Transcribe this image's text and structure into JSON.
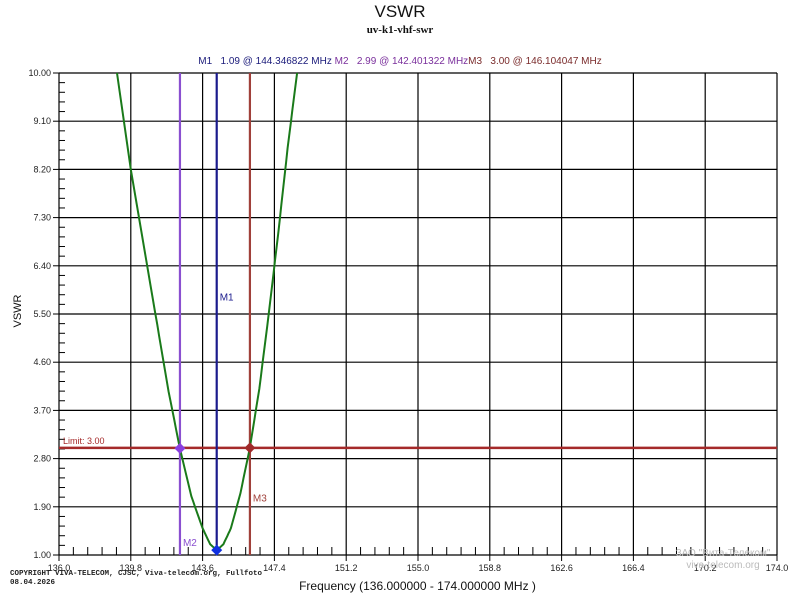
{
  "header": {
    "title": "VSWR",
    "subtitle": "uv-k1-vhf-swr"
  },
  "markers_readout": [
    {
      "label": "M1",
      "text": "M1   1.09 @ 144.346822 MHz ",
      "color": "#1a1a7a"
    },
    {
      "label": "M2",
      "text": "M2   2.99 @ 142.401322 MHz",
      "color": "#7a2f9c"
    },
    {
      "label": "M3",
      "text": "M3   3.00 @ 146.104047 MHz",
      "color": "#7a2b2b"
    }
  ],
  "axes": {
    "ylabel": "VSWR",
    "xlabel": "Frequency (136.000000 - 174.000000 MHz )"
  },
  "footer": {
    "copyright_line1": "COPYRIGHT VIVA-TELECOM, CJSC, Viva-telecom.org, Fullfoto",
    "copyright_line2": "08.04.2026",
    "watermark_line1": "ЗАО \"Вита-Телеком\"",
    "watermark_line2": "viva-telecom.org"
  },
  "limit": {
    "label": "Limit: 3.00",
    "value": 3.0,
    "color": "#a52a2a"
  },
  "colors": {
    "curve": "#1a7a1a",
    "m1": "#1a1a8c",
    "m1_diamond": "#1030e0",
    "m2": "#8a4fd0",
    "m2_diamond": "#8a3fe0",
    "m3": "#a0403a",
    "m3_diamond": "#a02a2a",
    "grid": "#000000"
  },
  "chart_data": {
    "type": "line",
    "title": "VSWR",
    "subtitle": "uv-k1-vhf-swr",
    "xlabel": "Frequency (136.000000 - 174.000000 MHz )",
    "ylabel": "VSWR",
    "xlim": [
      136.0,
      174.0
    ],
    "ylim": [
      1.0,
      10.0
    ],
    "x_ticks": [
      "136.0",
      "139.8",
      "143.6",
      "147.4",
      "151.2",
      "155.0",
      "158.8",
      "162.6",
      "166.4",
      "170.2",
      "174.0"
    ],
    "y_ticks": [
      "1.00",
      "1.90",
      "2.80",
      "3.70",
      "4.60",
      "5.50",
      "6.40",
      "7.30",
      "8.20",
      "9.10",
      "10.00"
    ],
    "grid": true,
    "series": [
      {
        "name": "VSWR",
        "x": [
          139.07,
          139.8,
          140.5,
          141.2,
          141.8,
          142.4,
          143.0,
          143.6,
          144.0,
          144.35,
          144.7,
          145.1,
          145.6,
          146.1,
          146.6,
          147.1,
          147.6,
          148.1,
          148.6
        ],
        "y": [
          10.0,
          8.2,
          6.75,
          5.3,
          4.05,
          2.99,
          2.1,
          1.5,
          1.2,
          1.09,
          1.2,
          1.5,
          2.15,
          3.0,
          4.1,
          5.5,
          7.0,
          8.6,
          10.0
        ]
      }
    ],
    "markers": [
      {
        "name": "M1",
        "x": 144.346822,
        "y": 1.09
      },
      {
        "name": "M2",
        "x": 142.401322,
        "y": 2.99
      },
      {
        "name": "M3",
        "x": 146.104047,
        "y": 3.0
      }
    ],
    "annotations": [
      {
        "type": "hline",
        "y": 3.0,
        "label": "Limit: 3.00"
      }
    ]
  }
}
